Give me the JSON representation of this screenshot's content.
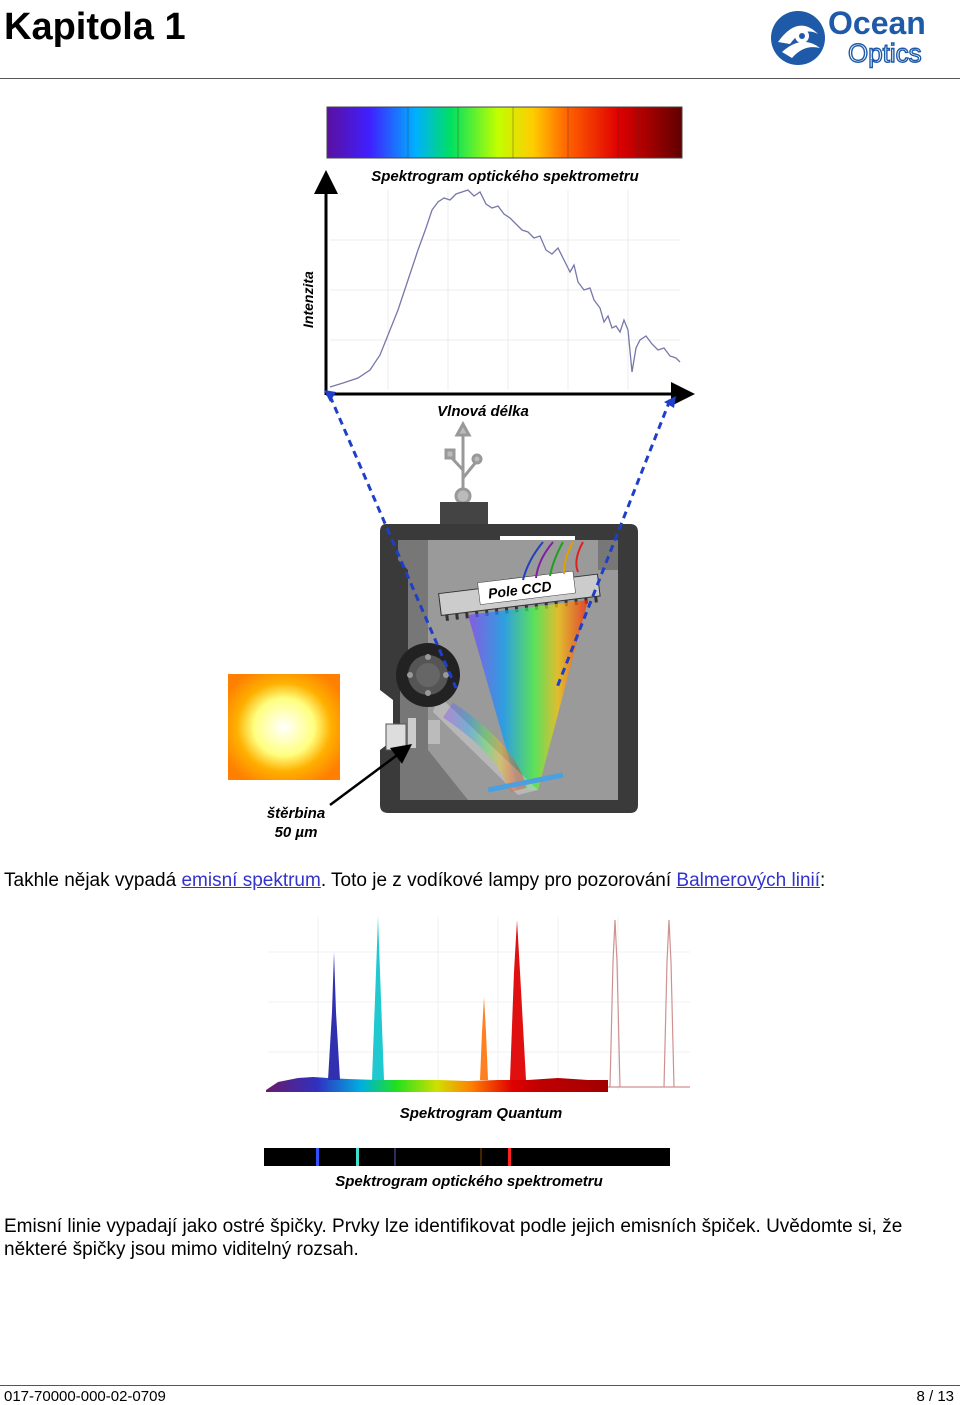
{
  "header": {
    "title": "Kapitola 1",
    "logo_line1": "Ocean",
    "logo_line2": "Optics"
  },
  "figure1": {
    "spectrogram_caption": "Spektrogram optického spektrometru",
    "y_axis": "Intenzita",
    "x_axis": "Vlnová délka",
    "ccd_label": "Pole CCD",
    "slit_label": "štěrbina",
    "slit_width": "50 µm"
  },
  "paragraph1": {
    "text_before": "Takhle nějak vypadá ",
    "link1": "emisní spektrum",
    "text_middle": ". Toto je z vodíkové lampy pro pozorování ",
    "link2": "Balmerových linií",
    "text_after": ":"
  },
  "figure2": {
    "quantum_caption": "Spektrogram Quantum",
    "optical_caption": "Spektrogram optického spektrometru"
  },
  "paragraph2": {
    "text": "Emisní linie vypadají jako ostré špičky. Prvky lze identifikovat podle jejich emisních špiček. Uvědomte si, že některé špičky jsou mimo viditelný rozsah."
  },
  "footer": {
    "doc_number": "017-70000-000-02-0709",
    "page": "8 / 13"
  }
}
